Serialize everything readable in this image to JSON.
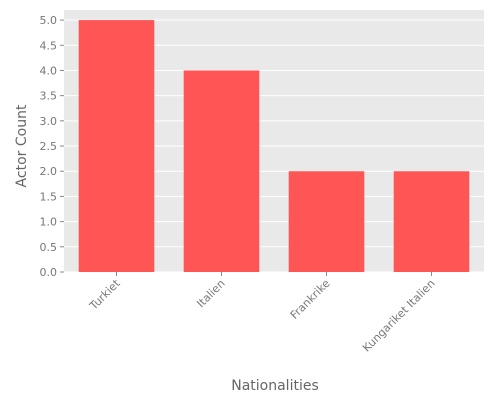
{
  "chart_data": {
    "type": "bar",
    "title": "",
    "xlabel": "Nationalities",
    "ylabel": "Actor Count",
    "categories": [
      "Turkiet",
      "Italien",
      "Frankrike",
      "Kungariket Italien"
    ],
    "values": [
      5,
      4,
      2,
      2
    ],
    "ylim": [
      0,
      5.2
    ],
    "yticks": [
      "0.0",
      "0.5",
      "1.0",
      "1.5",
      "2.0",
      "2.5",
      "3.0",
      "3.5",
      "4.0",
      "4.5",
      "5.0"
    ],
    "grid": true,
    "bar_color": "#ff5555",
    "plot_background": "#e9e9e9"
  }
}
